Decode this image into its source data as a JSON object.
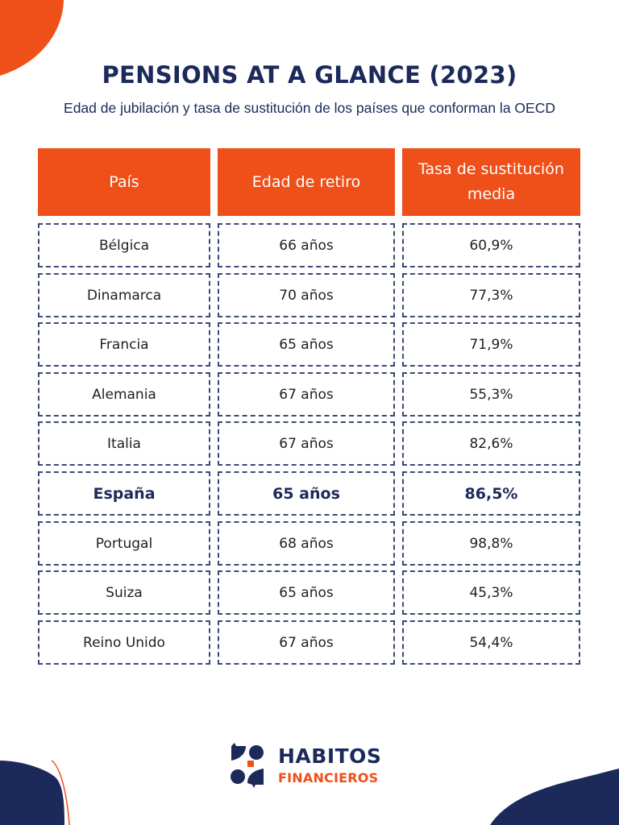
{
  "header": {
    "title": "PENSIONS AT A GLANCE (2023)",
    "subtitle": "Edad de jubilación y tasa de sustitución de los países que conforman la OECD"
  },
  "table": {
    "columns": [
      "País",
      "Edad de retiro",
      "Tasa de sustitución media"
    ],
    "rows": [
      {
        "country": "Bélgica",
        "age": "66 años",
        "rate": "60,9%",
        "highlight": false
      },
      {
        "country": "Dinamarca",
        "age": "70 años",
        "rate": "77,3%",
        "highlight": false
      },
      {
        "country": "Francia",
        "age": "65 años",
        "rate": "71,9%",
        "highlight": false
      },
      {
        "country": "Alemania",
        "age": "67 años",
        "rate": "55,3%",
        "highlight": false
      },
      {
        "country": "Italia",
        "age": "67 años",
        "rate": "82,6%",
        "highlight": false
      },
      {
        "country": "España",
        "age": "65 años",
        "rate": "86,5%",
        "highlight": true
      },
      {
        "country": "Portugal",
        "age": "68 años",
        "rate": "98,8%",
        "highlight": false
      },
      {
        "country": "Suiza",
        "age": "65 años",
        "rate": "45,3%",
        "highlight": false
      },
      {
        "country": "Reino Unido",
        "age": "67 años",
        "rate": "54,4%",
        "highlight": false
      }
    ]
  },
  "logo": {
    "line1": "HABITOS",
    "line2": "FINANCIEROS",
    "icon": "speech-bubbles-logo-icon"
  },
  "colors": {
    "accent": "#ef5019",
    "navy": "#1b2a5a",
    "border": "#3a4a75",
    "background": "#ffffff"
  }
}
